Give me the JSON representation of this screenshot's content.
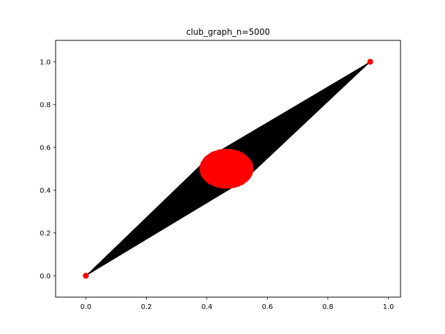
{
  "chart_data": {
    "type": "scatter",
    "title": "club_graph_n=5000",
    "xlabel": "",
    "ylabel": "",
    "xlim": [
      -0.1,
      1.04
    ],
    "ylim": [
      -0.1,
      1.1
    ],
    "grid": false,
    "x_ticks": [
      "0.0",
      "0.2",
      "0.4",
      "0.6",
      "0.8",
      "1.0"
    ],
    "y_ticks": [
      "0.0",
      "0.2",
      "0.4",
      "0.6",
      "0.8",
      "1.0"
    ],
    "hub_nodes": [
      {
        "x": 0.0,
        "y": 0.0
      },
      {
        "x": 0.94,
        "y": 1.0
      }
    ],
    "cluster": {
      "node_count": 5000,
      "center_x": 0.465,
      "center_y": 0.5,
      "x_range": [
        0.39,
        0.55
      ],
      "y_range": [
        0.42,
        0.58
      ]
    },
    "colors": {
      "nodes": "#ff0000",
      "edges": "#000000"
    }
  }
}
